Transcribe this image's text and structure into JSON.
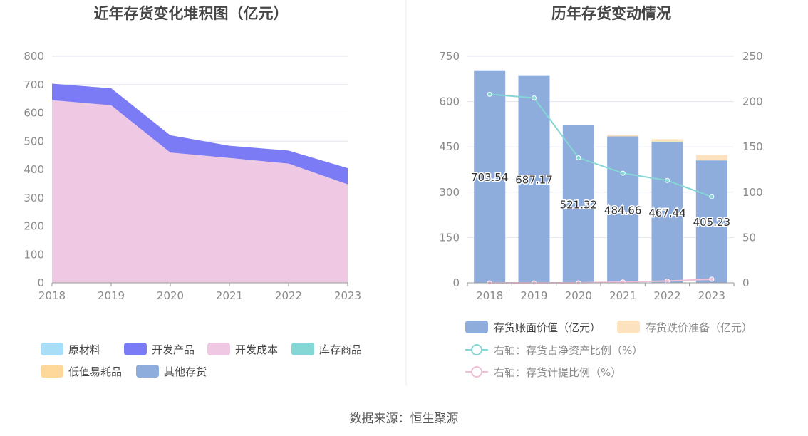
{
  "source_label": "数据来源：恒生聚源",
  "colors": {
    "raw_material": "#a9def9",
    "dev_product": "#7b7bf5",
    "dev_cost": "#efc9e4",
    "stock_goods": "#84d7d4",
    "low_value": "#fdd89a",
    "other": "#8eacdc",
    "book_value": "#8eacdc",
    "impairment": "#fde2c0",
    "net_asset_ratio": "#84d7d4",
    "provision_ratio": "#efbfd8",
    "grid": "#e3e6f0",
    "axis": "#9a9a9a"
  },
  "chart_data": [
    {
      "type": "area",
      "title": "近年存货变化堆积图（亿元）",
      "x": [
        "2018",
        "2019",
        "2020",
        "2021",
        "2022",
        "2023"
      ],
      "ylim": [
        0,
        800
      ],
      "yticks": [
        "0",
        "100",
        "200",
        "300",
        "400",
        "500",
        "600",
        "700",
        "800"
      ],
      "stacked": true,
      "series": [
        {
          "name": "开发成本",
          "color_key": "dev_cost",
          "values": [
            645,
            627,
            460,
            441,
            421,
            348
          ]
        },
        {
          "name": "开发产品",
          "color_key": "dev_product",
          "values": [
            58,
            60,
            61,
            43,
            46,
            57
          ]
        }
      ],
      "legend": [
        {
          "name": "原材料",
          "color_key": "raw_material"
        },
        {
          "name": "开发产品",
          "color_key": "dev_product"
        },
        {
          "name": "开发成本",
          "color_key": "dev_cost"
        },
        {
          "name": "库存商品",
          "color_key": "stock_goods"
        },
        {
          "name": "低值易耗品",
          "color_key": "low_value"
        },
        {
          "name": "其他存货",
          "color_key": "other"
        }
      ]
    },
    {
      "type": "bar",
      "title": "历年存货变动情况",
      "categories": [
        "2018",
        "2019",
        "2020",
        "2021",
        "2022",
        "2023"
      ],
      "ylim": [
        0,
        750
      ],
      "yticks": [
        "0",
        "150",
        "300",
        "450",
        "600",
        "750"
      ],
      "y2lim": [
        0,
        250
      ],
      "y2ticks": [
        "0",
        "50",
        "100",
        "150",
        "200",
        "250"
      ],
      "stacked": true,
      "series": [
        {
          "name": "存货账面价值（亿元）",
          "color_key": "book_value",
          "values": [
            703.54,
            687.17,
            521.32,
            484.66,
            467.44,
            405.23
          ],
          "labels": [
            "703.54",
            "687.17",
            "521.32",
            "484.66",
            "467.44",
            "405.23"
          ]
        },
        {
          "name": "存货跌价准备（亿元）",
          "color_key": "impairment",
          "values": [
            0,
            0,
            0,
            5,
            8,
            18
          ]
        }
      ],
      "lines": [
        {
          "name": "右轴：存货占净资产比例（%）",
          "color_key": "net_asset_ratio",
          "values": [
            208,
            204,
            138,
            121,
            113,
            95
          ]
        },
        {
          "name": "右轴：存货计提比例（%）",
          "color_key": "provision_ratio",
          "values": [
            0,
            0,
            0,
            1,
            2,
            4
          ]
        }
      ]
    }
  ]
}
